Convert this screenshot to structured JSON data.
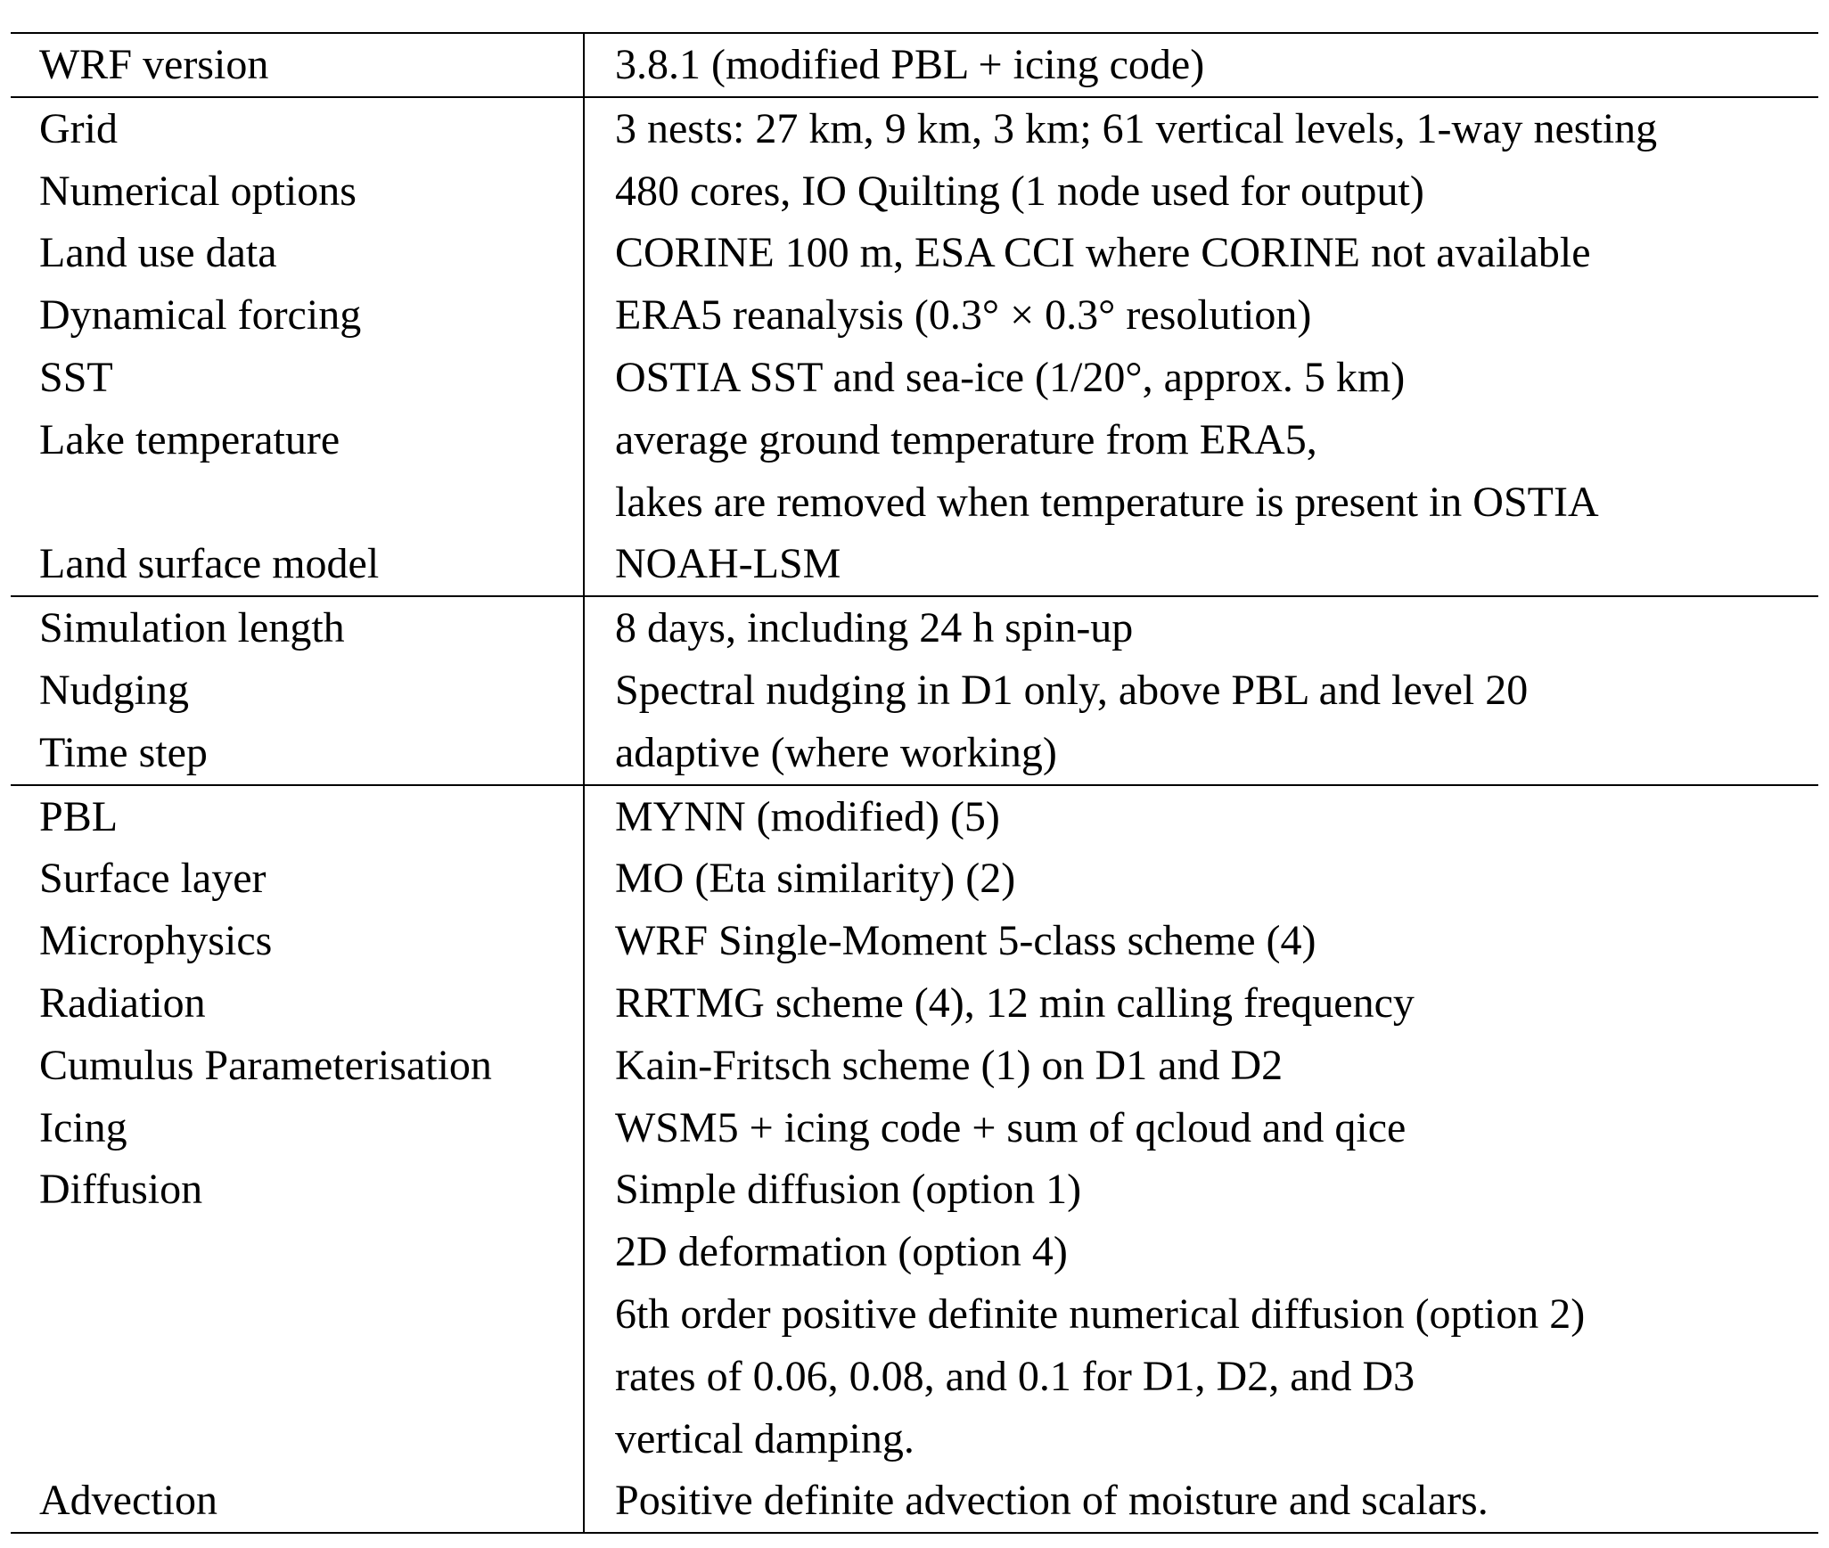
{
  "groups": [
    {
      "rows": [
        {
          "label": "WRF version",
          "values": [
            "3.8.1 (modified PBL + icing code)"
          ]
        }
      ]
    },
    {
      "rows": [
        {
          "label": "Grid",
          "values": [
            "3 nests: 27 km, 9 km, 3 km; 61 vertical levels, 1-way nesting"
          ]
        },
        {
          "label": "Numerical options",
          "values": [
            "480 cores, IO Quilting (1 node used for output)"
          ]
        },
        {
          "label": "Land use data",
          "values": [
            "CORINE 100 m, ESA CCI where CORINE not available"
          ]
        },
        {
          "label": "Dynamical forcing",
          "values": [
            "ERA5 reanalysis (0.3° × 0.3° resolution)"
          ]
        },
        {
          "label": "SST",
          "values": [
            "OSTIA SST and sea-ice (1/20°, approx. 5 km)"
          ]
        },
        {
          "label": "Lake temperature",
          "values": [
            "average ground temperature from ERA5,",
            "lakes are removed when temperature is present in OSTIA"
          ]
        },
        {
          "label": "Land surface model",
          "values": [
            "NOAH-LSM"
          ]
        }
      ]
    },
    {
      "rows": [
        {
          "label": "Simulation length",
          "values": [
            "8 days, including 24 h spin-up"
          ]
        },
        {
          "label": "Nudging",
          "values": [
            "Spectral nudging in D1 only, above PBL and level 20"
          ]
        },
        {
          "label": "Time step",
          "values": [
            "adaptive (where working)"
          ]
        }
      ]
    },
    {
      "rows": [
        {
          "label": "PBL",
          "values": [
            "MYNN (modified) (5)"
          ]
        },
        {
          "label": "Surface layer",
          "values": [
            "MO (Eta similarity) (2)"
          ]
        },
        {
          "label": "Microphysics",
          "values": [
            "WRF Single-Moment 5-class scheme (4)"
          ]
        },
        {
          "label": "Radiation",
          "values": [
            "RRTMG scheme (4), 12 min calling frequency"
          ]
        },
        {
          "label": "Cumulus Parameterisation",
          "values": [
            "Kain-Fritsch scheme (1) on D1 and D2"
          ]
        },
        {
          "label": "Icing",
          "values": [
            "WSM5 + icing code + sum of qcloud and qice"
          ]
        },
        {
          "label": "Diffusion",
          "values": [
            "Simple diffusion (option 1)",
            "2D deformation (option 4)",
            "6th order positive definite numerical diffusion (option 2)",
            "rates of 0.06, 0.08, and 0.1 for D1, D2, and D3",
            "vertical damping."
          ]
        },
        {
          "label": "Advection",
          "values": [
            "Positive definite advection of moisture and scalars."
          ]
        }
      ]
    }
  ]
}
